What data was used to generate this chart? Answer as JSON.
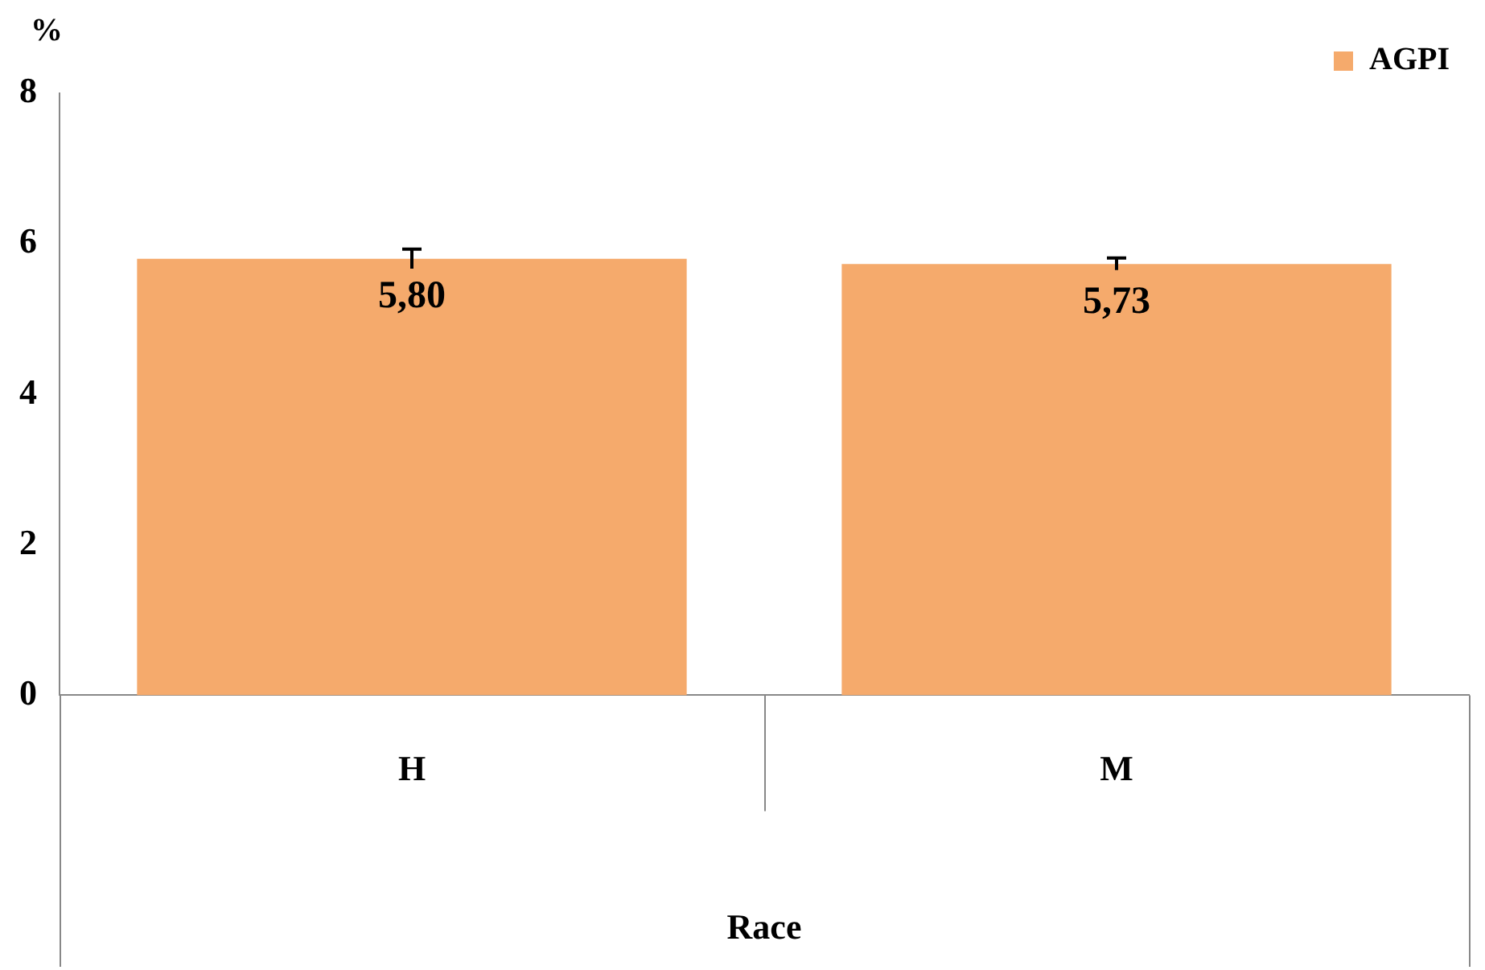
{
  "chart_data": {
    "type": "bar",
    "xlabel": "Race",
    "ylabel": "%",
    "categories": [
      "H",
      "M"
    ],
    "series": [
      {
        "name": "AGPI",
        "color": "#f5aa6c",
        "values": [
          5.8,
          5.73
        ],
        "errors": [
          0.13,
          0.08
        ],
        "value_labels": [
          "5,80",
          "5,73"
        ]
      }
    ],
    "ylim": [
      0,
      8
    ],
    "yticks": [
      0,
      2,
      4,
      6,
      8
    ],
    "grid": false,
    "legend": "top right"
  }
}
